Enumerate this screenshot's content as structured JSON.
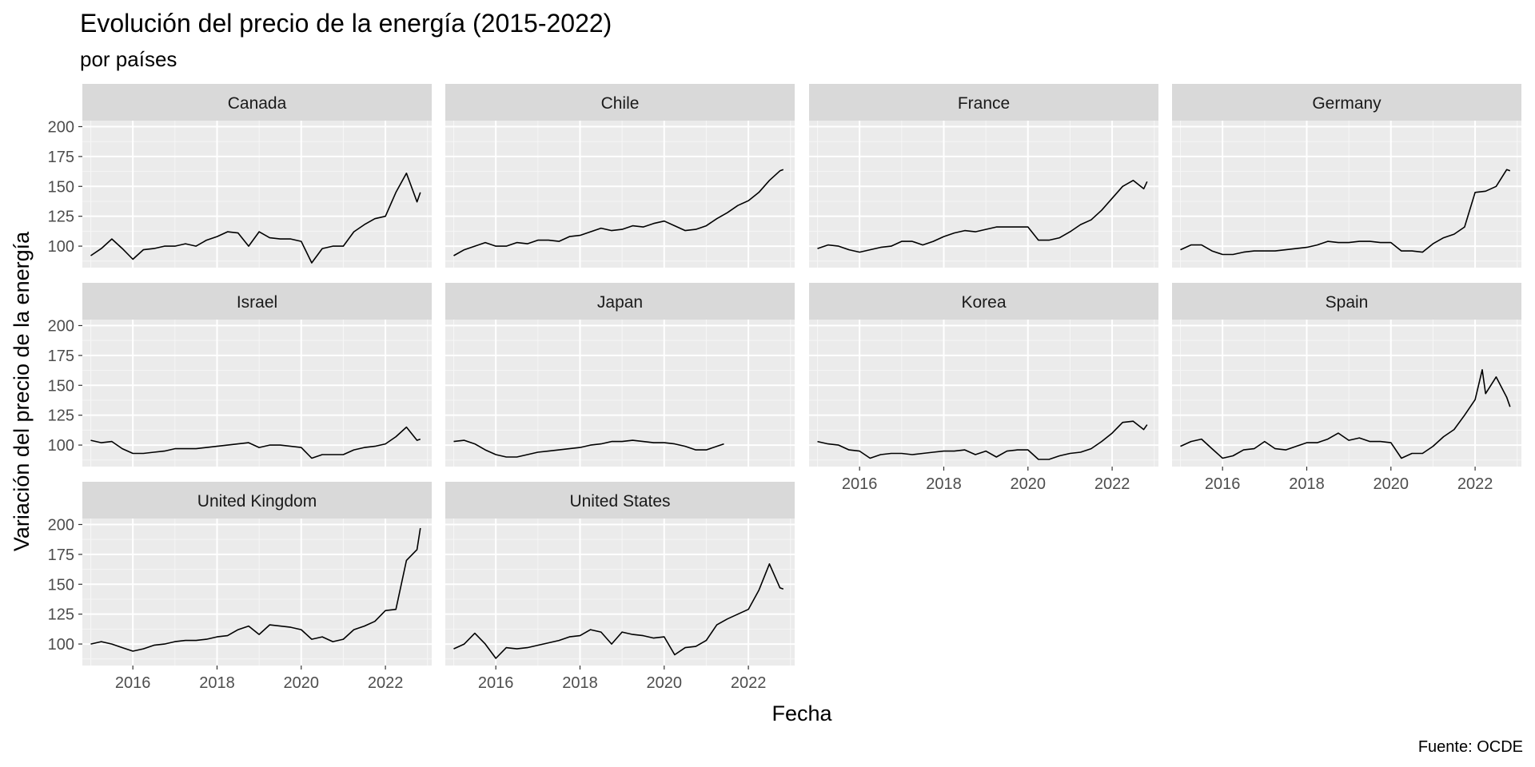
{
  "title": "Evolución del precio de la energía (2015-2022)",
  "subtitle": "por países",
  "caption": "Fuente: OCDE",
  "chart_data": {
    "type": "line",
    "facet_layout": "4 columns × 3 rows, wrap",
    "xlabel": "Fecha",
    "ylabel": "Variación del precio de la energía",
    "xlim": [
      2014.8,
      2023.1
    ],
    "ylim": [
      82,
      205
    ],
    "x_ticks": [
      2016,
      2018,
      2020,
      2022
    ],
    "x_tick_labels": [
      "2016",
      "2018",
      "2020",
      "2022"
    ],
    "y_ticks": [
      100,
      125,
      150,
      175,
      200
    ],
    "y_tick_labels": [
      "100",
      "125",
      "150",
      "175",
      "200"
    ],
    "grid": true,
    "line_color": "#000000",
    "panel_background": "#ebebeb",
    "strip_background": "#d9d9d9",
    "series": [
      {
        "name": "Canada",
        "x": [
          2015.0,
          2015.25,
          2015.5,
          2015.75,
          2016.0,
          2016.25,
          2016.5,
          2016.75,
          2017.0,
          2017.25,
          2017.5,
          2017.75,
          2018.0,
          2018.25,
          2018.5,
          2018.75,
          2019.0,
          2019.25,
          2019.5,
          2019.75,
          2020.0,
          2020.25,
          2020.5,
          2020.75,
          2021.0,
          2021.25,
          2021.5,
          2021.75,
          2022.0,
          2022.25,
          2022.5,
          2022.75,
          2022.83
        ],
        "y": [
          92,
          98,
          106,
          98,
          89,
          97,
          98,
          100,
          100,
          102,
          100,
          105,
          108,
          112,
          111,
          100,
          112,
          107,
          106,
          106,
          104,
          86,
          98,
          100,
          100,
          112,
          118,
          123,
          125,
          145,
          161,
          137,
          145
        ]
      },
      {
        "name": "Chile",
        "x": [
          2015.0,
          2015.25,
          2015.5,
          2015.75,
          2016.0,
          2016.25,
          2016.5,
          2016.75,
          2017.0,
          2017.25,
          2017.5,
          2017.75,
          2018.0,
          2018.25,
          2018.5,
          2018.75,
          2019.0,
          2019.25,
          2019.5,
          2019.75,
          2020.0,
          2020.25,
          2020.5,
          2020.75,
          2021.0,
          2021.25,
          2021.5,
          2021.75,
          2022.0,
          2022.25,
          2022.5,
          2022.75,
          2022.83
        ],
        "y": [
          92,
          97,
          100,
          103,
          100,
          100,
          103,
          102,
          105,
          105,
          104,
          108,
          109,
          112,
          115,
          113,
          114,
          117,
          116,
          119,
          121,
          117,
          113,
          114,
          117,
          123,
          128,
          134,
          138,
          145,
          155,
          163,
          164
        ]
      },
      {
        "name": "France",
        "x": [
          2015.0,
          2015.25,
          2015.5,
          2015.75,
          2016.0,
          2016.25,
          2016.5,
          2016.75,
          2017.0,
          2017.25,
          2017.5,
          2017.75,
          2018.0,
          2018.25,
          2018.5,
          2018.75,
          2019.0,
          2019.25,
          2019.5,
          2019.75,
          2020.0,
          2020.25,
          2020.5,
          2020.75,
          2021.0,
          2021.25,
          2021.5,
          2021.75,
          2022.0,
          2022.25,
          2022.5,
          2022.75,
          2022.83
        ],
        "y": [
          98,
          101,
          100,
          97,
          95,
          97,
          99,
          100,
          104,
          104,
          101,
          104,
          108,
          111,
          113,
          112,
          114,
          116,
          116,
          116,
          116,
          105,
          105,
          107,
          112,
          118,
          122,
          130,
          140,
          150,
          155,
          148,
          154
        ]
      },
      {
        "name": "Germany",
        "x": [
          2015.0,
          2015.25,
          2015.5,
          2015.75,
          2016.0,
          2016.25,
          2016.5,
          2016.75,
          2017.0,
          2017.25,
          2017.5,
          2017.75,
          2018.0,
          2018.25,
          2018.5,
          2018.75,
          2019.0,
          2019.25,
          2019.5,
          2019.75,
          2020.0,
          2020.25,
          2020.5,
          2020.75,
          2021.0,
          2021.25,
          2021.5,
          2021.75,
          2022.0,
          2022.25,
          2022.5,
          2022.75,
          2022.83
        ],
        "y": [
          97,
          101,
          101,
          96,
          93,
          93,
          95,
          96,
          96,
          96,
          97,
          98,
          99,
          101,
          104,
          103,
          103,
          104,
          104,
          103,
          103,
          96,
          96,
          95,
          102,
          107,
          110,
          116,
          145,
          146,
          150,
          164,
          163
        ]
      },
      {
        "name": "Israel",
        "x": [
          2015.0,
          2015.25,
          2015.5,
          2015.75,
          2016.0,
          2016.25,
          2016.5,
          2016.75,
          2017.0,
          2017.25,
          2017.5,
          2017.75,
          2018.0,
          2018.25,
          2018.5,
          2018.75,
          2019.0,
          2019.25,
          2019.5,
          2019.75,
          2020.0,
          2020.25,
          2020.5,
          2020.75,
          2021.0,
          2021.25,
          2021.5,
          2021.75,
          2022.0,
          2022.25,
          2022.5,
          2022.75,
          2022.83
        ],
        "y": [
          104,
          102,
          103,
          97,
          93,
          93,
          94,
          95,
          97,
          97,
          97,
          98,
          99,
          100,
          101,
          102,
          98,
          100,
          100,
          99,
          98,
          89,
          92,
          92,
          92,
          96,
          98,
          99,
          101,
          107,
          115,
          104,
          105
        ]
      },
      {
        "name": "Japan",
        "x": [
          2015.0,
          2015.25,
          2015.5,
          2015.75,
          2016.0,
          2016.25,
          2016.5,
          2016.75,
          2017.0,
          2017.25,
          2017.5,
          2017.75,
          2018.0,
          2018.25,
          2018.5,
          2018.75,
          2019.0,
          2019.25,
          2019.5,
          2019.75,
          2020.0,
          2020.25,
          2020.5,
          2020.75,
          2021.0,
          2021.25,
          2021.42
        ],
        "y": [
          103,
          104,
          101,
          96,
          92,
          90,
          90,
          92,
          94,
          95,
          96,
          97,
          98,
          100,
          101,
          103,
          103,
          104,
          103,
          102,
          102,
          101,
          99,
          96,
          96,
          99,
          101
        ]
      },
      {
        "name": "Korea",
        "x": [
          2015.0,
          2015.25,
          2015.5,
          2015.75,
          2016.0,
          2016.25,
          2016.5,
          2016.75,
          2017.0,
          2017.25,
          2017.5,
          2017.75,
          2018.0,
          2018.25,
          2018.5,
          2018.75,
          2019.0,
          2019.25,
          2019.5,
          2019.75,
          2020.0,
          2020.25,
          2020.5,
          2020.75,
          2021.0,
          2021.25,
          2021.5,
          2021.75,
          2022.0,
          2022.25,
          2022.5,
          2022.75,
          2022.83
        ],
        "y": [
          103,
          101,
          100,
          96,
          95,
          89,
          92,
          93,
          93,
          92,
          93,
          94,
          95,
          95,
          96,
          92,
          95,
          90,
          95,
          96,
          96,
          88,
          88,
          91,
          93,
          94,
          97,
          103,
          110,
          119,
          120,
          113,
          117
        ]
      },
      {
        "name": "Spain",
        "x": [
          2015.0,
          2015.25,
          2015.5,
          2015.75,
          2016.0,
          2016.25,
          2016.5,
          2016.75,
          2017.0,
          2017.25,
          2017.5,
          2017.75,
          2018.0,
          2018.25,
          2018.5,
          2018.75,
          2019.0,
          2019.25,
          2019.5,
          2019.75,
          2020.0,
          2020.25,
          2020.5,
          2020.75,
          2021.0,
          2021.25,
          2021.5,
          2021.75,
          2022.0,
          2022.17,
          2022.25,
          2022.5,
          2022.75,
          2022.83
        ],
        "y": [
          99,
          103,
          105,
          97,
          89,
          91,
          96,
          97,
          103,
          97,
          96,
          99,
          102,
          102,
          105,
          110,
          104,
          106,
          103,
          103,
          102,
          89,
          93,
          93,
          99,
          107,
          113,
          125,
          138,
          163,
          143,
          157,
          140,
          132
        ]
      },
      {
        "name": "United Kingdom",
        "x": [
          2015.0,
          2015.25,
          2015.5,
          2015.75,
          2016.0,
          2016.25,
          2016.5,
          2016.75,
          2017.0,
          2017.25,
          2017.5,
          2017.75,
          2018.0,
          2018.25,
          2018.5,
          2018.75,
          2019.0,
          2019.25,
          2019.5,
          2019.75,
          2020.0,
          2020.25,
          2020.5,
          2020.75,
          2021.0,
          2021.25,
          2021.5,
          2021.75,
          2022.0,
          2022.25,
          2022.5,
          2022.75,
          2022.83
        ],
        "y": [
          100,
          102,
          100,
          97,
          94,
          96,
          99,
          100,
          102,
          103,
          103,
          104,
          106,
          107,
          112,
          115,
          108,
          116,
          115,
          114,
          112,
          104,
          106,
          102,
          104,
          112,
          115,
          119,
          128,
          129,
          170,
          179,
          197
        ]
      },
      {
        "name": "United States",
        "x": [
          2015.0,
          2015.25,
          2015.5,
          2015.75,
          2016.0,
          2016.25,
          2016.5,
          2016.75,
          2017.0,
          2017.25,
          2017.5,
          2017.75,
          2018.0,
          2018.25,
          2018.5,
          2018.75,
          2019.0,
          2019.25,
          2019.5,
          2019.75,
          2020.0,
          2020.25,
          2020.5,
          2020.75,
          2021.0,
          2021.25,
          2021.5,
          2021.75,
          2022.0,
          2022.25,
          2022.5,
          2022.75,
          2022.83
        ],
        "y": [
          96,
          100,
          109,
          100,
          88,
          97,
          96,
          97,
          99,
          101,
          103,
          106,
          107,
          112,
          110,
          100,
          110,
          108,
          107,
          105,
          106,
          91,
          97,
          98,
          103,
          116,
          121,
          125,
          129,
          145,
          167,
          147,
          146
        ]
      }
    ]
  }
}
